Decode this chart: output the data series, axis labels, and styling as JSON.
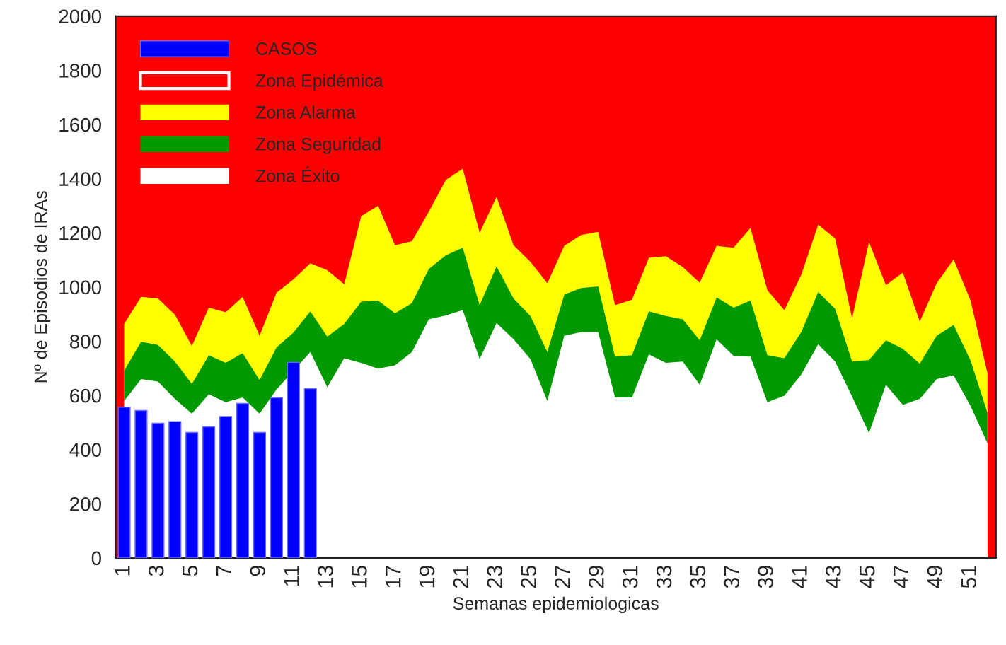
{
  "chart_data": {
    "type": "area",
    "xlabel": "Semanas epidemiologicas",
    "ylabel": "Nº de Episodios de IRAs",
    "categories": [
      "1",
      null,
      "3",
      null,
      "5",
      null,
      "7",
      null,
      "9",
      null,
      "11",
      null,
      "13",
      null,
      "15",
      null,
      "17",
      null,
      "19",
      null,
      "21",
      null,
      "23",
      null,
      "25",
      null,
      "27",
      null,
      "29",
      null,
      "31",
      null,
      "33",
      null,
      "35",
      null,
      "37",
      null,
      "39",
      null,
      "41",
      null,
      "43",
      null,
      "45",
      null,
      "47",
      null,
      "49",
      null,
      "51",
      null
    ],
    "series": [
      {
        "name": "CASOS",
        "type": "bar",
        "color": "#0000ff",
        "values": [
          556,
          544,
          497,
          503,
          463,
          484,
          522,
          570,
          463,
          591,
          722,
          625,
          null,
          null,
          null,
          null,
          null,
          null,
          null,
          null,
          null,
          null,
          null,
          null,
          null,
          null,
          null,
          null,
          null,
          null,
          null,
          null,
          null,
          null,
          null,
          null,
          null,
          null,
          null,
          null,
          null,
          null,
          null,
          null,
          null,
          null,
          null,
          null,
          null,
          null,
          null,
          null
        ]
      },
      {
        "name": "Zona Alarma",
        "color": "#ffff00",
        "values": [
          864,
          964,
          958,
          898,
          782,
          924,
          907,
          964,
          820,
          979,
          1028,
          1088,
          1062,
          1010,
          1261,
          1300,
          1154,
          1169,
          1278,
          1395,
          1437,
          1200,
          1333,
          1154,
          1093,
          1014,
          1152,
          1192,
          1204,
          933,
          953,
          1108,
          1114,
          1074,
          1016,
          1152,
          1145,
          1218,
          988,
          915,
          1045,
          1230,
          1180,
          884,
          1166,
          1007,
          1053,
          872,
          1014,
          1102,
          950,
          682
        ]
      },
      {
        "name": "Zona Seguridad",
        "color": "#009900",
        "values": [
          691,
          798,
          786,
          725,
          642,
          748,
          720,
          756,
          656,
          777,
          832,
          910,
          817,
          864,
          946,
          950,
          903,
          941,
          1067,
          1117,
          1145,
          933,
          1076,
          958,
          893,
          760,
          972,
          996,
          1002,
          743,
          748,
          910,
          893,
          881,
          803,
          962,
          924,
          950,
          748,
          737,
          834,
          981,
          920,
          725,
          731,
          803,
          772,
          717,
          820,
          860,
          729,
          535
        ]
      },
      {
        "name": "Zona Éxito",
        "color": "#ffffff",
        "values": [
          579,
          660,
          651,
          587,
          532,
          604,
          575,
          592,
          532,
          622,
          null,
          760,
          630,
          737,
          720,
          699,
          711,
          760,
          881,
          895,
          915,
          734,
          867,
          808,
          734,
          579,
          820,
          834,
          834,
          592,
          592,
          751,
          720,
          725,
          639,
          807,
          746,
          743,
          575,
          599,
          677,
          789,
          725,
          596,
          461,
          639,
          565,
          587,
          660,
          674,
          561,
          423
        ]
      }
    ],
    "bands": [
      {
        "axis": "y",
        "from": 0,
        "to": 2000,
        "label": "Zona Epidémica",
        "color": "#ff0000"
      }
    ],
    "ylim": [
      0,
      2000
    ],
    "yticks": [
      0,
      200,
      400,
      600,
      800,
      1000,
      1200,
      1400,
      1600,
      1800,
      2000
    ],
    "grid": false,
    "legend": "top left"
  }
}
